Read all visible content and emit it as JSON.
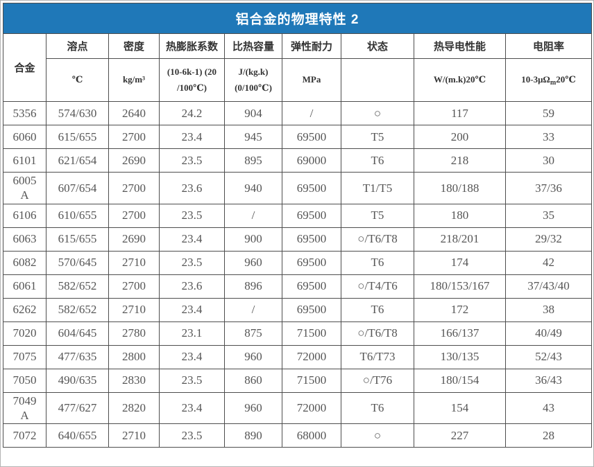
{
  "table": {
    "title": "铝合金的物理特性 2",
    "header": {
      "alloy": "合金",
      "cols": [
        {
          "name": "溶点",
          "unit": "℃"
        },
        {
          "name": "密度",
          "unit": "kg/m³"
        },
        {
          "name": "热膨胀系数",
          "unit": "(10-6k-1) (20\n/100℃)"
        },
        {
          "name": "比热容量",
          "unit": "J/(kg.k)\n(0/100℃)"
        },
        {
          "name": "弹性耐力",
          "unit": "MPa"
        },
        {
          "name": "状态",
          "unit": ""
        },
        {
          "name": "热导电性能",
          "unit": "W/(m.k)20℃"
        },
        {
          "name": "电阻率",
          "unit_parts": [
            "10-3μΩ",
            "m",
            "20℃"
          ]
        }
      ]
    },
    "rows": [
      [
        "5356",
        "574/630",
        "2640",
        "24.2",
        "904",
        "/",
        "○",
        "117",
        "59"
      ],
      [
        "6060",
        "615/655",
        "2700",
        "23.4",
        "945",
        "69500",
        "T5",
        "200",
        "33"
      ],
      [
        "6101",
        "621/654",
        "2690",
        "23.5",
        "895",
        "69000",
        "T6",
        "218",
        "30"
      ],
      [
        "6005\nA",
        "607/654",
        "2700",
        "23.6",
        "940",
        "69500",
        "T1/T5",
        "180/188",
        "37/36"
      ],
      [
        "6106",
        "610/655",
        "2700",
        "23.5",
        "/",
        "69500",
        "T5",
        "180",
        "35"
      ],
      [
        "6063",
        "615/655",
        "2690",
        "23.4",
        "900",
        "69500",
        "○/T6/T8",
        "218/201",
        "29/32"
      ],
      [
        "6082",
        "570/645",
        "2710",
        "23.5",
        "960",
        "69500",
        "T6",
        "174",
        "42"
      ],
      [
        "6061",
        "582/652",
        "2700",
        "23.6",
        "896",
        "69500",
        "○/T4/T6",
        "180/153/167",
        "37/43/40"
      ],
      [
        "6262",
        "582/652",
        "2710",
        "23.4",
        "/",
        "69500",
        "T6",
        "172",
        "38"
      ],
      [
        "7020",
        "604/645",
        "2780",
        "23.1",
        "875",
        "71500",
        "○/T6/T8",
        "166/137",
        "40/49"
      ],
      [
        "7075",
        "477/635",
        "2800",
        "23.4",
        "960",
        "72000",
        "T6/T73",
        "130/135",
        "52/43"
      ],
      [
        "7050",
        "490/635",
        "2830",
        "23.5",
        "860",
        "71500",
        "○/T76",
        "180/154",
        "36/43"
      ],
      [
        "7049\nA",
        "477/627",
        "2820",
        "23.4",
        "960",
        "72000",
        "T6",
        "154",
        "43"
      ],
      [
        "7072",
        "640/655",
        "2710",
        "23.5",
        "890",
        "68000",
        "○",
        "227",
        "28"
      ]
    ],
    "accent_color": "#1f78b8"
  }
}
